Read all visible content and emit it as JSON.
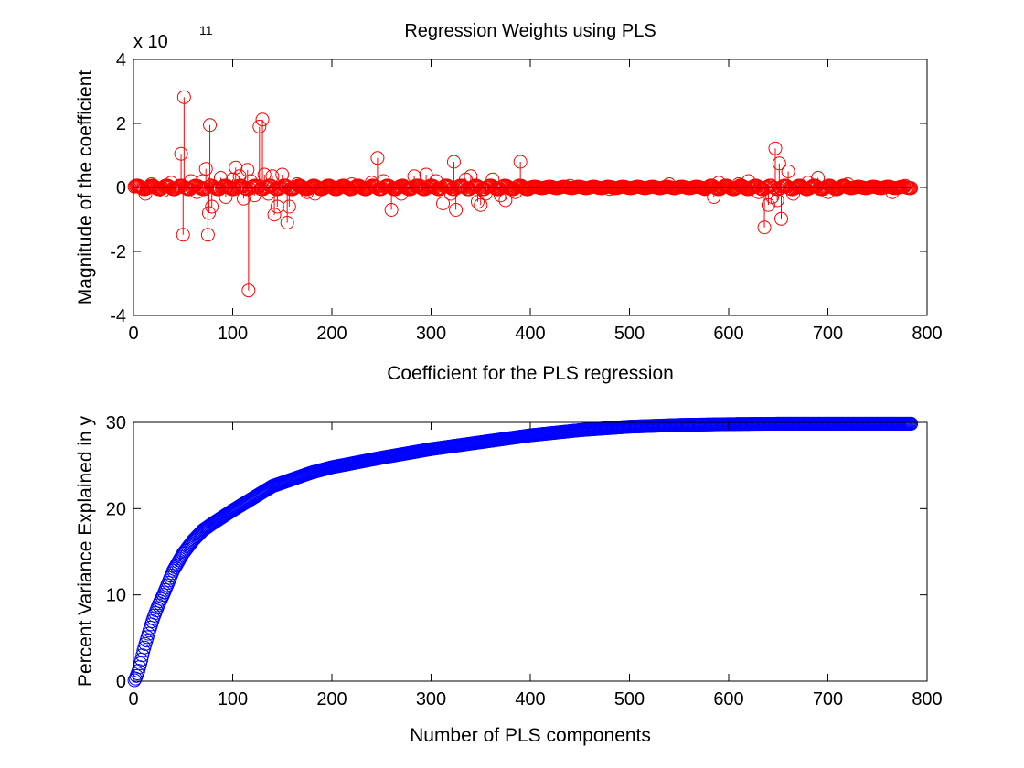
{
  "chart_data": [
    {
      "type": "stem",
      "title": "Regression Weights using PLS",
      "xlabel": "Coefficient for the PLS regression",
      "ylabel": "Magnitude of the coefficient",
      "y_multiplier": "x 10",
      "y_multiplier_exponent": "11",
      "xlim": [
        0,
        800
      ],
      "ylim": [
        -4,
        4
      ],
      "xticks": [
        0,
        100,
        200,
        300,
        400,
        500,
        600,
        700,
        800
      ],
      "yticks": [
        -4,
        -2,
        0,
        2,
        4
      ],
      "grid": false,
      "n_coefficients": 784,
      "marker": "circle",
      "color": "#ff0000",
      "baseline_color": "#000000",
      "highlighted_points": [
        {
          "x": 5,
          "y": 0.05
        },
        {
          "x": 12,
          "y": -0.2
        },
        {
          "x": 18,
          "y": 0.1
        },
        {
          "x": 30,
          "y": -0.1
        },
        {
          "x": 38,
          "y": 0.15
        },
        {
          "x": 48,
          "y": 1.05
        },
        {
          "x": 50,
          "y": -1.48
        },
        {
          "x": 51,
          "y": 2.82
        },
        {
          "x": 58,
          "y": 0.2
        },
        {
          "x": 64,
          "y": -0.15
        },
        {
          "x": 70,
          "y": 0.2
        },
        {
          "x": 73,
          "y": 0.58
        },
        {
          "x": 75,
          "y": -1.48
        },
        {
          "x": 76,
          "y": -0.8
        },
        {
          "x": 77,
          "y": 1.95
        },
        {
          "x": 79,
          "y": -0.6
        },
        {
          "x": 88,
          "y": 0.3
        },
        {
          "x": 93,
          "y": -0.3
        },
        {
          "x": 100,
          "y": 0.25
        },
        {
          "x": 103,
          "y": 0.62
        },
        {
          "x": 107,
          "y": 0.35
        },
        {
          "x": 111,
          "y": -0.35
        },
        {
          "x": 115,
          "y": 0.55
        },
        {
          "x": 116,
          "y": -3.22
        },
        {
          "x": 118,
          "y": 0.2
        },
        {
          "x": 122,
          "y": -0.25
        },
        {
          "x": 127,
          "y": 1.9
        },
        {
          "x": 130,
          "y": 2.12
        },
        {
          "x": 132,
          "y": 0.4
        },
        {
          "x": 136,
          "y": -0.2
        },
        {
          "x": 140,
          "y": 0.35
        },
        {
          "x": 142,
          "y": -0.85
        },
        {
          "x": 145,
          "y": -0.6
        },
        {
          "x": 150,
          "y": 0.4
        },
        {
          "x": 155,
          "y": -1.1
        },
        {
          "x": 157,
          "y": -0.6
        },
        {
          "x": 165,
          "y": 0.1
        },
        {
          "x": 175,
          "y": -0.15
        },
        {
          "x": 183,
          "y": -0.2
        },
        {
          "x": 220,
          "y": 0.1
        },
        {
          "x": 240,
          "y": 0.15
        },
        {
          "x": 246,
          "y": 0.92
        },
        {
          "x": 252,
          "y": 0.2
        },
        {
          "x": 260,
          "y": -0.7
        },
        {
          "x": 270,
          "y": -0.2
        },
        {
          "x": 283,
          "y": 0.35
        },
        {
          "x": 295,
          "y": 0.4
        },
        {
          "x": 305,
          "y": 0.2
        },
        {
          "x": 312,
          "y": -0.5
        },
        {
          "x": 320,
          "y": -0.2
        },
        {
          "x": 323,
          "y": 0.8
        },
        {
          "x": 325,
          "y": -0.7
        },
        {
          "x": 335,
          "y": 0.25
        },
        {
          "x": 340,
          "y": 0.35
        },
        {
          "x": 347,
          "y": -0.45
        },
        {
          "x": 350,
          "y": -0.55
        },
        {
          "x": 355,
          "y": -0.2
        },
        {
          "x": 362,
          "y": 0.25
        },
        {
          "x": 370,
          "y": -0.25
        },
        {
          "x": 375,
          "y": -0.4
        },
        {
          "x": 385,
          "y": -0.15
        },
        {
          "x": 390,
          "y": 0.8
        },
        {
          "x": 440,
          "y": 0.05
        },
        {
          "x": 480,
          "y": -0.05
        },
        {
          "x": 540,
          "y": 0.1
        },
        {
          "x": 585,
          "y": -0.3
        },
        {
          "x": 590,
          "y": 0.15
        },
        {
          "x": 610,
          "y": 0.1
        },
        {
          "x": 620,
          "y": 0.2
        },
        {
          "x": 630,
          "y": -0.15
        },
        {
          "x": 636,
          "y": -1.25
        },
        {
          "x": 640,
          "y": -0.55
        },
        {
          "x": 644,
          "y": -0.3
        },
        {
          "x": 647,
          "y": 1.22
        },
        {
          "x": 649,
          "y": -0.4
        },
        {
          "x": 651,
          "y": 0.75
        },
        {
          "x": 653,
          "y": -0.98
        },
        {
          "x": 660,
          "y": 0.5
        },
        {
          "x": 665,
          "y": -0.2
        },
        {
          "x": 680,
          "y": 0.15
        },
        {
          "x": 690,
          "y": 0.3
        },
        {
          "x": 700,
          "y": -0.15
        },
        {
          "x": 720,
          "y": 0.1
        },
        {
          "x": 765,
          "y": -0.15
        },
        {
          "x": 778,
          "y": 0.05
        }
      ]
    },
    {
      "type": "scatter",
      "title": "",
      "xlabel": "Number of PLS components",
      "ylabel": "Percent Variance Explained in y",
      "xlim": [
        0,
        800
      ],
      "ylim": [
        0,
        30
      ],
      "xticks": [
        0,
        100,
        200,
        300,
        400,
        500,
        600,
        700,
        800
      ],
      "yticks": [
        0,
        10,
        20,
        30
      ],
      "grid": false,
      "n_components": 784,
      "marker": "circle",
      "color": "#0000ff",
      "curve_points": [
        {
          "x": 1,
          "y": 0.1
        },
        {
          "x": 2,
          "y": 0.3
        },
        {
          "x": 3,
          "y": 0.6
        },
        {
          "x": 5,
          "y": 1.2
        },
        {
          "x": 8,
          "y": 2.5
        },
        {
          "x": 10,
          "y": 3.5
        },
        {
          "x": 15,
          "y": 5.5
        },
        {
          "x": 20,
          "y": 7.3
        },
        {
          "x": 25,
          "y": 8.8
        },
        {
          "x": 30,
          "y": 10.0
        },
        {
          "x": 40,
          "y": 12.8
        },
        {
          "x": 50,
          "y": 14.8
        },
        {
          "x": 60,
          "y": 16.3
        },
        {
          "x": 70,
          "y": 17.5
        },
        {
          "x": 80,
          "y": 18.3
        },
        {
          "x": 100,
          "y": 19.8
        },
        {
          "x": 120,
          "y": 21.2
        },
        {
          "x": 140,
          "y": 22.6
        },
        {
          "x": 160,
          "y": 23.4
        },
        {
          "x": 180,
          "y": 24.2
        },
        {
          "x": 200,
          "y": 24.8
        },
        {
          "x": 250,
          "y": 25.9
        },
        {
          "x": 300,
          "y": 26.9
        },
        {
          "x": 350,
          "y": 27.7
        },
        {
          "x": 400,
          "y": 28.5
        },
        {
          "x": 450,
          "y": 29.1
        },
        {
          "x": 500,
          "y": 29.5
        },
        {
          "x": 550,
          "y": 29.7
        },
        {
          "x": 600,
          "y": 29.8
        },
        {
          "x": 650,
          "y": 29.85
        },
        {
          "x": 700,
          "y": 29.85
        },
        {
          "x": 784,
          "y": 29.85
        }
      ]
    }
  ]
}
